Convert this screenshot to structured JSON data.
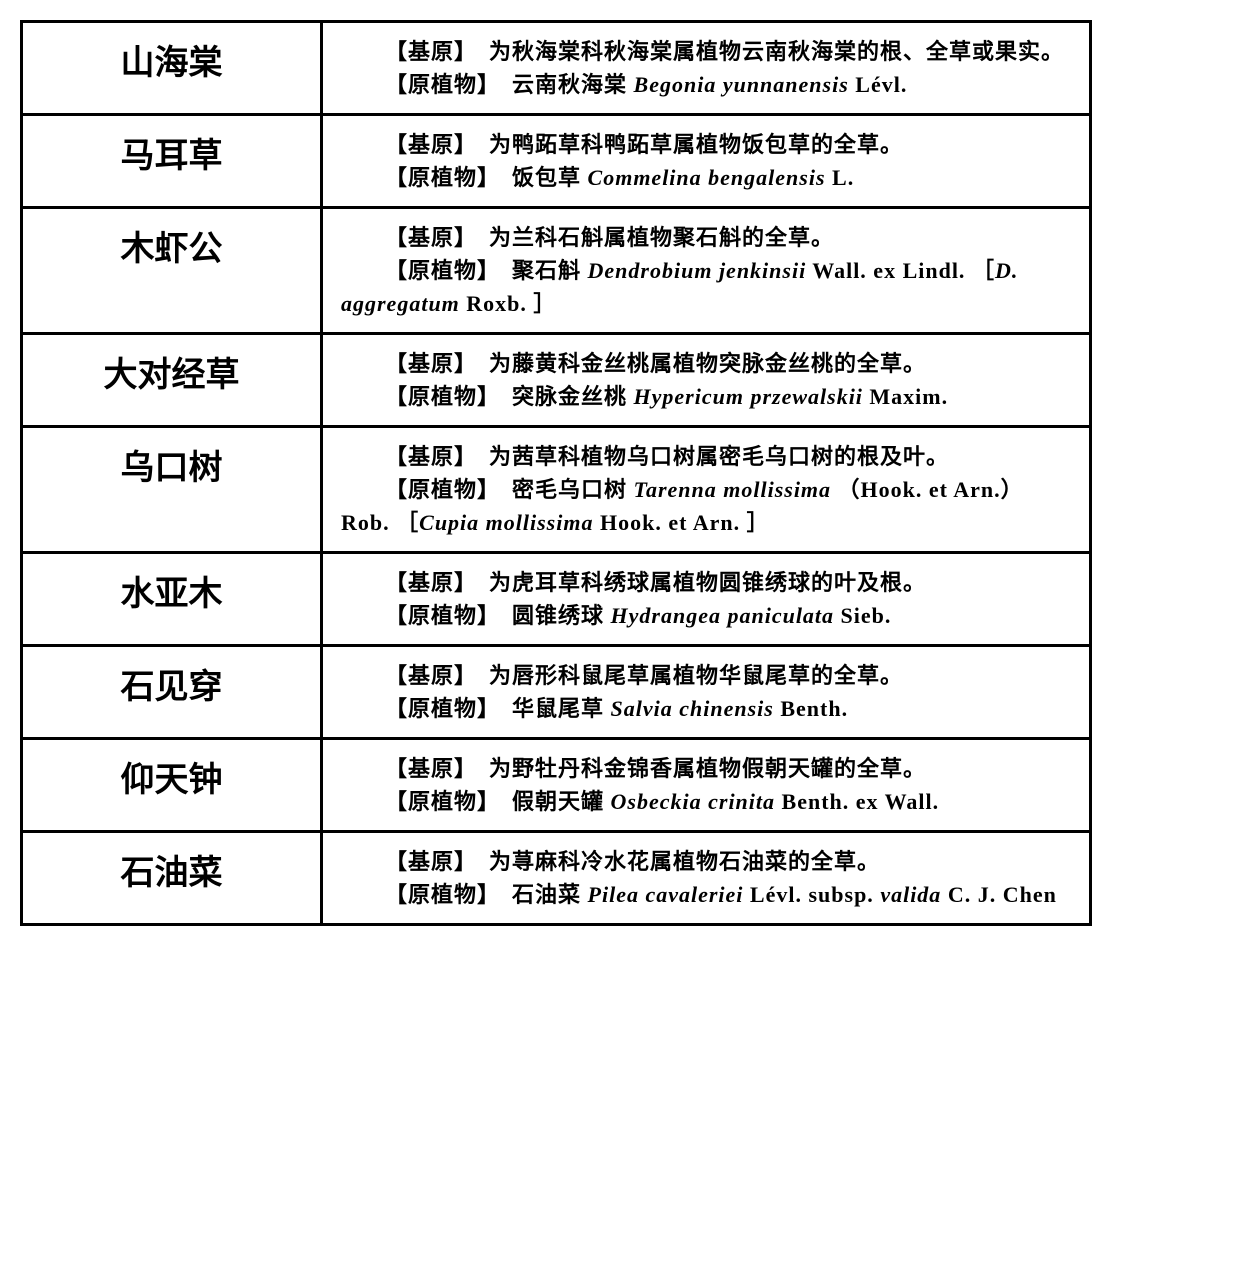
{
  "labels": {
    "origin": "【基原】",
    "plant": "【原植物】"
  },
  "rows": [
    {
      "name": "山海棠",
      "origin_text": "为秋海棠科秋海棠属植物云南秋海棠的根、全草或果实。",
      "plant_cn": "云南秋海棠 ",
      "plant_latin": "Begonia yunnanensis",
      "plant_auth": " Lévl.",
      "syn_latin": "",
      "syn_auth": "",
      "tail_auth": ""
    },
    {
      "name": "马耳草",
      "origin_text": "为鸭跖草科鸭跖草属植物饭包草的全草。",
      "plant_cn": "饭包草 ",
      "plant_latin": "Commelina bengalensis",
      "plant_auth": " L.",
      "syn_latin": "",
      "syn_auth": "",
      "tail_auth": ""
    },
    {
      "name": "木虾公",
      "origin_text": "为兰科石斛属植物聚石斛的全草。",
      "plant_cn": "聚石斛 ",
      "plant_latin": "Dendrobium jenkinsii",
      "plant_auth": " Wall. ex Lindl. ",
      "syn_latin": "D. aggregatum",
      "syn_auth": " Roxb. ",
      "tail_auth": ""
    },
    {
      "name": "大对经草",
      "origin_text": "为藤黄科金丝桃属植物突脉金丝桃的全草。",
      "plant_cn": "突脉金丝桃 ",
      "plant_latin": "Hypericum przewalskii",
      "plant_auth": " Maxim.",
      "syn_latin": "",
      "syn_auth": "",
      "tail_auth": ""
    },
    {
      "name": "乌口树",
      "origin_text": "为茜草科植物乌口树属密毛乌口树的根及叶。",
      "plant_cn": "密毛乌口树 ",
      "plant_latin": "Tarenna mollissima",
      "plant_auth": " （Hook. et Arn.）Rob. ",
      "syn_latin": "Cupia mollissima",
      "syn_auth": " Hook. et Arn. ",
      "tail_auth": ""
    },
    {
      "name": "水亚木",
      "origin_text": "为虎耳草科绣球属植物圆锥绣球的叶及根。",
      "plant_cn": "圆锥绣球 ",
      "plant_latin": "Hydrangea paniculata",
      "plant_auth": " Sieb.",
      "syn_latin": "",
      "syn_auth": "",
      "tail_auth": ""
    },
    {
      "name": "石见穿",
      "origin_text": "为唇形科鼠尾草属植物华鼠尾草的全草。",
      "plant_cn": "华鼠尾草 ",
      "plant_latin": "Salvia chinensis",
      "plant_auth": " Benth.",
      "syn_latin": "",
      "syn_auth": "",
      "tail_auth": ""
    },
    {
      "name": "仰天钟",
      "origin_text": "为野牡丹科金锦香属植物假朝天罐的全草。",
      "plant_cn": "假朝天罐 ",
      "plant_latin": "Osbeckia crinita",
      "plant_auth": " Benth. ex Wall.",
      "syn_latin": "",
      "syn_auth": "",
      "tail_auth": ""
    },
    {
      "name": "石油菜",
      "origin_text": "为荨麻科冷水花属植物石油菜的全草。",
      "plant_cn": "石油菜 ",
      "plant_latin": "Pilea cavaleriei",
      "plant_auth": " Lévl. subsp. ",
      "syn_latin": "valida",
      "syn_auth": "",
      "tail_auth": " C. J. Chen"
    }
  ]
}
